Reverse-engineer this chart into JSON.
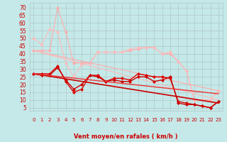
{
  "xlabel": "Vent moyen/en rafales ( km/h )",
  "bg_color": "#c5e8e8",
  "grid_color": "#b0c8c8",
  "xlim": [
    -0.5,
    23.5
  ],
  "ylim": [
    3,
    73
  ],
  "yticks": [
    5,
    10,
    15,
    20,
    25,
    30,
    35,
    40,
    45,
    50,
    55,
    60,
    65,
    70
  ],
  "xticks": [
    0,
    1,
    2,
    3,
    4,
    5,
    6,
    7,
    8,
    9,
    10,
    11,
    12,
    13,
    14,
    15,
    16,
    17,
    18,
    19,
    20,
    21,
    22,
    23
  ],
  "lines": [
    {
      "x": [
        0,
        1,
        2,
        3,
        4,
        5,
        6,
        7,
        8,
        9,
        10,
        11,
        12,
        13,
        14,
        15,
        16,
        17,
        18,
        19,
        20,
        21,
        22,
        23
      ],
      "y": [
        42,
        42,
        42,
        70,
        54,
        34,
        34,
        34,
        41,
        41,
        41,
        41,
        42,
        43,
        44,
        44,
        40,
        40,
        35,
        29,
        10,
        10,
        10,
        16
      ],
      "color": "#ffaaaa",
      "lw": 0.8,
      "marker": "D",
      "ms": 2.0
    },
    {
      "x": [
        0,
        1,
        2,
        3,
        4,
        5,
        6,
        7,
        8,
        9,
        10,
        11,
        12,
        13,
        14,
        15,
        16,
        17,
        18,
        19,
        20,
        21,
        22,
        23
      ],
      "y": [
        50,
        46,
        56,
        54,
        34,
        25,
        33,
        34,
        41,
        41,
        41,
        41,
        43,
        44,
        44,
        44,
        40,
        41,
        35,
        29,
        10,
        10,
        10,
        16
      ],
      "color": "#ffbbbb",
      "lw": 0.8,
      "marker": "D",
      "ms": 2.0
    },
    {
      "x": [
        0,
        23
      ],
      "y": [
        42,
        16
      ],
      "color": "#ffaaaa",
      "lw": 0.8,
      "marker": null,
      "ms": 0
    },
    {
      "x": [
        0,
        23
      ],
      "y": [
        42,
        10
      ],
      "color": "#ffbbbb",
      "lw": 0.8,
      "marker": null,
      "ms": 0
    },
    {
      "x": [
        0,
        1,
        2,
        3,
        4,
        5,
        6,
        7,
        8,
        9,
        10,
        11,
        12,
        13,
        14,
        15,
        16,
        17,
        18,
        19,
        20,
        21,
        22,
        23
      ],
      "y": [
        27,
        27,
        27,
        32,
        22,
        15,
        17,
        26,
        26,
        22,
        24,
        24,
        23,
        27,
        26,
        25,
        25,
        24,
        9,
        8,
        7,
        6,
        5,
        9
      ],
      "color": "#dd0000",
      "lw": 1.0,
      "marker": "D",
      "ms": 2.0
    },
    {
      "x": [
        0,
        1,
        2,
        3,
        4,
        5,
        6,
        7,
        8,
        9,
        10,
        11,
        12,
        13,
        14,
        15,
        16,
        17,
        18,
        19,
        20,
        21,
        22,
        23
      ],
      "y": [
        27,
        26,
        26,
        31,
        23,
        17,
        20,
        26,
        25,
        22,
        23,
        22,
        22,
        25,
        25,
        22,
        23,
        25,
        8,
        7,
        7,
        6,
        5,
        9
      ],
      "color": "#cc0000",
      "lw": 1.0,
      "marker": "D",
      "ms": 2.0
    },
    {
      "x": [
        0,
        23
      ],
      "y": [
        27,
        8
      ],
      "color": "#cc0000",
      "lw": 1.2,
      "marker": null,
      "ms": 0
    },
    {
      "x": [
        0,
        23
      ],
      "y": [
        27,
        14
      ],
      "color": "#ee3333",
      "lw": 1.0,
      "marker": null,
      "ms": 0
    }
  ],
  "arrow_symbol": "↗",
  "arrow_color": "#cc0000",
  "xlabel_color": "#cc0000",
  "tick_color": "#cc0000"
}
